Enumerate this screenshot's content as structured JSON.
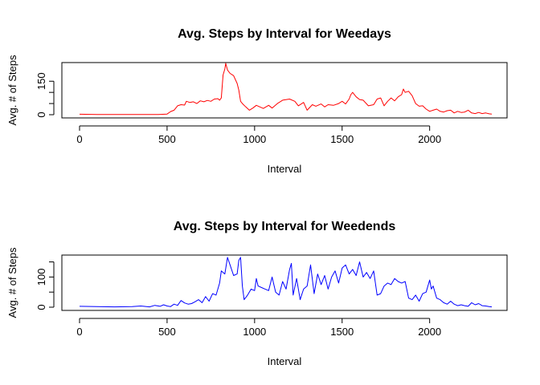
{
  "chart_data": [
    {
      "type": "line",
      "title": "Avg. Steps by Interval for Weedays",
      "xlabel": "Interval",
      "ylabel": "Avg. # of Steps",
      "xlim": [
        0,
        2355
      ],
      "ylim": [
        0,
        230
      ],
      "xticks": [
        0,
        500,
        1000,
        1500,
        2000
      ],
      "yticks": [
        0,
        50,
        100,
        150
      ],
      "ytick_labels": [
        "0",
        "",
        "",
        "150"
      ],
      "series": [
        {
          "color": "#ff0000",
          "x": [
            0,
            100,
            200,
            300,
            400,
            450,
            500,
            520,
            540,
            560,
            580,
            600,
            610,
            630,
            650,
            670,
            690,
            710,
            730,
            750,
            770,
            790,
            800,
            810,
            820,
            830,
            835,
            845,
            860,
            880,
            900,
            910,
            920,
            930,
            950,
            970,
            990,
            1010,
            1030,
            1050,
            1080,
            1100,
            1130,
            1160,
            1200,
            1230,
            1250,
            1280,
            1300,
            1330,
            1350,
            1380,
            1400,
            1420,
            1450,
            1480,
            1500,
            1520,
            1540,
            1550,
            1560,
            1580,
            1600,
            1620,
            1650,
            1680,
            1700,
            1720,
            1740,
            1760,
            1780,
            1800,
            1820,
            1840,
            1850,
            1860,
            1880,
            1900,
            1920,
            1940,
            1960,
            1980,
            2000,
            2020,
            2040,
            2060,
            2080,
            2100,
            2120,
            2140,
            2160,
            2180,
            2200,
            2220,
            2240,
            2260,
            2280,
            2300,
            2320,
            2340,
            2355
          ],
          "y": [
            2,
            1,
            1,
            1,
            1,
            1,
            3,
            14,
            20,
            40,
            45,
            43,
            60,
            55,
            58,
            50,
            62,
            58,
            64,
            60,
            70,
            72,
            65,
            75,
            178,
            205,
            230,
            200,
            185,
            175,
            140,
            110,
            60,
            50,
            35,
            20,
            30,
            42,
            35,
            28,
            42,
            30,
            50,
            65,
            70,
            60,
            40,
            55,
            20,
            45,
            38,
            48,
            35,
            45,
            42,
            50,
            60,
            48,
            70,
            90,
            100,
            80,
            68,
            65,
            40,
            45,
            70,
            75,
            40,
            60,
            75,
            62,
            80,
            90,
            115,
            100,
            105,
            85,
            50,
            38,
            40,
            25,
            15,
            20,
            25,
            15,
            12,
            18,
            20,
            8,
            15,
            10,
            12,
            20,
            8,
            5,
            10,
            5,
            8,
            4,
            3
          ]
        }
      ]
    },
    {
      "type": "line",
      "title": "Avg. Steps by Interval for Weedends",
      "xlabel": "Interval",
      "ylabel": "Avg. # of Steps",
      "xlim": [
        0,
        2355
      ],
      "ylim": [
        0,
        170
      ],
      "xticks": [
        0,
        500,
        1000,
        1500,
        2000
      ],
      "yticks": [
        0,
        50,
        100,
        150
      ],
      "ytick_labels": [
        "0",
        "",
        "100",
        ""
      ],
      "series": [
        {
          "color": "#0000ff",
          "x": [
            0,
            100,
            200,
            300,
            350,
            400,
            430,
            460,
            480,
            500,
            520,
            540,
            560,
            580,
            600,
            620,
            640,
            660,
            680,
            700,
            720,
            740,
            760,
            780,
            800,
            810,
            830,
            845,
            860,
            880,
            900,
            910,
            920,
            930,
            940,
            960,
            980,
            1000,
            1010,
            1020,
            1040,
            1060,
            1080,
            1100,
            1120,
            1140,
            1160,
            1180,
            1200,
            1210,
            1220,
            1240,
            1260,
            1280,
            1300,
            1320,
            1340,
            1360,
            1380,
            1400,
            1420,
            1440,
            1460,
            1480,
            1500,
            1520,
            1540,
            1560,
            1580,
            1600,
            1620,
            1640,
            1660,
            1680,
            1700,
            1720,
            1740,
            1760,
            1780,
            1800,
            1820,
            1840,
            1860,
            1880,
            1900,
            1920,
            1940,
            1960,
            1980,
            2000,
            2010,
            2020,
            2040,
            2060,
            2080,
            2100,
            2120,
            2140,
            2160,
            2180,
            2200,
            2220,
            2240,
            2260,
            2280,
            2300,
            2320,
            2340,
            2355
          ],
          "y": [
            3,
            2,
            1,
            2,
            4,
            1,
            6,
            3,
            8,
            4,
            2,
            10,
            6,
            22,
            14,
            10,
            12,
            18,
            25,
            15,
            35,
            20,
            45,
            40,
            80,
            120,
            110,
            165,
            140,
            105,
            110,
            155,
            165,
            70,
            25,
            40,
            60,
            55,
            95,
            70,
            65,
            60,
            55,
            100,
            50,
            40,
            85,
            60,
            125,
            145,
            40,
            95,
            25,
            60,
            70,
            140,
            45,
            110,
            75,
            105,
            60,
            100,
            120,
            80,
            130,
            140,
            110,
            125,
            105,
            150,
            100,
            115,
            95,
            120,
            40,
            45,
            70,
            80,
            75,
            95,
            85,
            80,
            85,
            30,
            25,
            40,
            20,
            45,
            50,
            90,
            60,
            70,
            30,
            25,
            15,
            10,
            20,
            10,
            5,
            8,
            5,
            3,
            15,
            8,
            12,
            5,
            4,
            2,
            1
          ]
        }
      ]
    }
  ]
}
